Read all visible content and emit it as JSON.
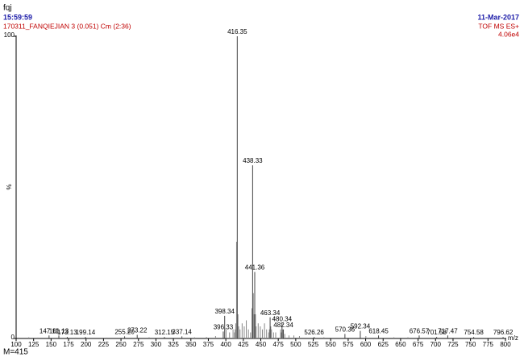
{
  "chart_data": {
    "type": "spectrum",
    "sample": "fqj",
    "time": "15:59:59",
    "subtitle": "170311_FANQIEJIAN 3 (0.051) Cm (2:36)",
    "date": "11-Mar-2017",
    "instrument": "TOF MS ES+",
    "intensity": "4.06e4",
    "ylabel": "%",
    "xlabel": "m/z",
    "annotation": "M=415",
    "x": [
      147.11,
      161.13,
      173.13,
      199.14,
      255.2,
      273.22,
      312.15,
      337.14,
      396.33,
      398.34,
      416.35,
      438.33,
      441.36,
      463.34,
      480.34,
      482.34,
      526.26,
      570.36,
      592.34,
      618.45,
      676.57,
      701.58,
      717.47,
      754.58,
      796.62
    ],
    "x_labels": [
      "147.11",
      "161.13",
      "173.13",
      "199.14",
      "255.20",
      "273.22",
      "312.15",
      "337.14",
      "396.33",
      "398.34",
      "416.35",
      "438.33",
      "441.36",
      "463.34",
      "480.34",
      "482.34",
      "526.26",
      "570.36",
      "592.34",
      "618.45",
      "676.57",
      "701.58",
      "717.47",
      "754.58",
      "796.62"
    ],
    "values": [
      1,
      1,
      0.5,
      0.5,
      0.7,
      1.2,
      0.5,
      0.7,
      2.3,
      7.5,
      100,
      57.3,
      22,
      7,
      5,
      3,
      0.5,
      1.5,
      2.5,
      1,
      1,
      0.5,
      1,
      0.5,
      0.5
    ],
    "minor_x": [
      103.1,
      118.1,
      131.1,
      185.1,
      229.2,
      290.2,
      355.2,
      372.3,
      385.3,
      400.3,
      405.3,
      410.3,
      412.3,
      413.3,
      414.3,
      415.35,
      417.35,
      418.35,
      420.3,
      423.3,
      426.3,
      429.3,
      432.3,
      435.3,
      437.3,
      439.33,
      440.34,
      442.36,
      443.36,
      446.3,
      449.3,
      452.3,
      455.3,
      458.3,
      461.3,
      462.3,
      464.3,
      465.3,
      468.3,
      471.3,
      478.3,
      479.3,
      481.3,
      484.3,
      490.3,
      497.3,
      505.3,
      540.3,
      600.3,
      640.4,
      660.5
    ],
    "minor_values": [
      0.3,
      0.4,
      0.3,
      0.3,
      0.3,
      0.4,
      0.4,
      0.5,
      0.8,
      3,
      2,
      3,
      2,
      3,
      5,
      32,
      8,
      4,
      3,
      5,
      4,
      6,
      3,
      2,
      10,
      15,
      8,
      8,
      4,
      5,
      4,
      3,
      5,
      3,
      2,
      3,
      4,
      3,
      2,
      2,
      3,
      2,
      3,
      1.5,
      1,
      1,
      0.8,
      0.4,
      0.8,
      0.4,
      0.4
    ],
    "xlim": [
      100,
      800
    ],
    "xticks": [
      100,
      125,
      150,
      175,
      200,
      225,
      250,
      275,
      300,
      325,
      350,
      375,
      400,
      425,
      450,
      475,
      500,
      525,
      550,
      575,
      600,
      625,
      650,
      675,
      700,
      725,
      750,
      775,
      800
    ],
    "ylim": [
      0,
      100
    ],
    "yticks": [
      0,
      100
    ]
  }
}
